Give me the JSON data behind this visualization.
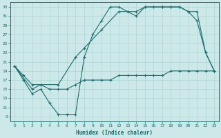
{
  "xlabel": "Humidex (Indice chaleur)",
  "xlim": [
    -0.5,
    23.5
  ],
  "ylim": [
    8,
    34
  ],
  "yticks": [
    9,
    11,
    13,
    15,
    17,
    19,
    21,
    23,
    25,
    27,
    29,
    31,
    33
  ],
  "xticks": [
    0,
    1,
    2,
    3,
    4,
    5,
    6,
    7,
    8,
    9,
    10,
    11,
    12,
    13,
    14,
    15,
    16,
    17,
    18,
    19,
    20,
    21,
    22,
    23
  ],
  "background_color": "#cce8e8",
  "grid_color": "#aad4d4",
  "line_color": "#1a6b6b",
  "line1_x": [
    0,
    1,
    2,
    3,
    4,
    5,
    6,
    7,
    8,
    9,
    10,
    11,
    12,
    13,
    14,
    15,
    16,
    17,
    18,
    19,
    20,
    21,
    22,
    23
  ],
  "line1_y": [
    20,
    17,
    14,
    15,
    12,
    9.5,
    9.5,
    9.5,
    22,
    27,
    30,
    33,
    33,
    32,
    31,
    33,
    33,
    33,
    33,
    33,
    32,
    30,
    23,
    19
  ],
  "line2_x": [
    0,
    1,
    2,
    3,
    4,
    5,
    6,
    7,
    8,
    9,
    10,
    11,
    12,
    13,
    14,
    15,
    16,
    17,
    18,
    19,
    20,
    21,
    22,
    23
  ],
  "line2_y": [
    20,
    18,
    16,
    16,
    15,
    15,
    15,
    16,
    17,
    17,
    17,
    17,
    18,
    18,
    18,
    18,
    18,
    18,
    19,
    19,
    19,
    19,
    19,
    19
  ],
  "line3_x": [
    0,
    2,
    3,
    5,
    7,
    8,
    10,
    12,
    14,
    15,
    17,
    18,
    19,
    20,
    21,
    22,
    23
  ],
  "line3_y": [
    20,
    15,
    16,
    16,
    22,
    24,
    28,
    32,
    32,
    33,
    33,
    33,
    33,
    32,
    32,
    23,
    19
  ]
}
